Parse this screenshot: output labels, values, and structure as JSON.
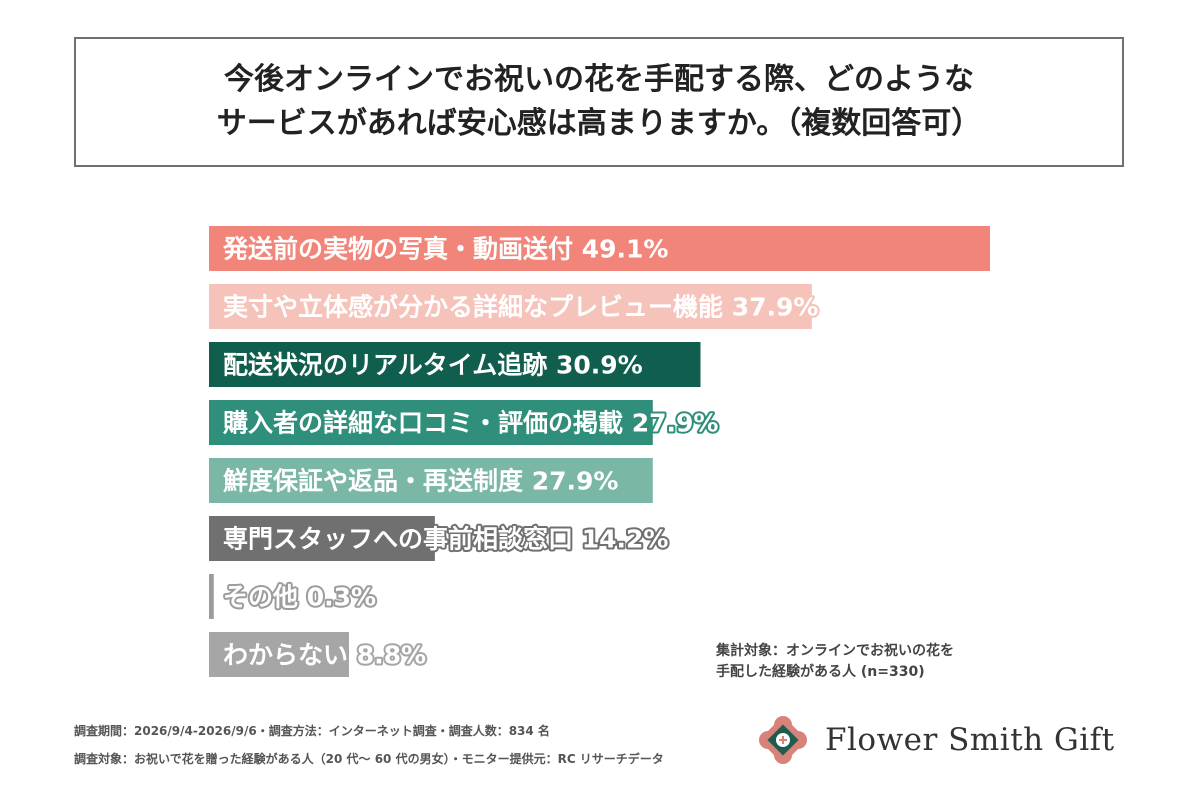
{
  "title": {
    "line1": "今後オンラインでお祝いの花を手配する際、どのような",
    "line2": "サービスがあれば安心感は高まりますか。（複数回答可）"
  },
  "chart_data": {
    "type": "bar",
    "orientation": "horizontal",
    "categories": [
      "発送前の実物の写真・動画送付",
      "実寸や立体感が分かる詳細なプレビュー機能",
      "配送状況のリアルタイム追跡",
      "購入者の詳細な口コミ・評価の掲載",
      "鮮度保証や返品・再送制度",
      "専門スタッフへの事前相談窓口",
      "その他",
      "わからない"
    ],
    "values": [
      49.1,
      37.9,
      30.9,
      27.9,
      27.9,
      14.2,
      0.3,
      8.8
    ],
    "value_labels": [
      "49.1%",
      "37.9%",
      "30.9%",
      "27.9%",
      "27.9%",
      "14.2%",
      "0.3%",
      "8.8%"
    ],
    "colors": [
      "#f2857a",
      "#f6c3bb",
      "#105e4e",
      "#2f8f7a",
      "#7ab7a6",
      "#707070",
      "#9c9c9c",
      "#a6a6a6"
    ],
    "xlim": [
      0,
      49.1
    ],
    "grid": false,
    "legend": "none"
  },
  "note": {
    "line1": "集計対象：オンラインでお祝いの花を",
    "line2": "手配した経験がある人 (n=330)"
  },
  "footer": {
    "line1": "調査期間：2026/9/4-2026/9/6・調査方法：インターネット調査・調査人数：834 名",
    "line2": "調査対象：お祝いで花を贈った経験がある人（20 代〜 60 代の男女）・モニター提供元：RC リサーチデータ"
  },
  "logo": {
    "name": "Flower Smith Gift",
    "icon": "flower-emblem-icon",
    "colors": [
      "#d8837a",
      "#1f5c4e"
    ]
  }
}
